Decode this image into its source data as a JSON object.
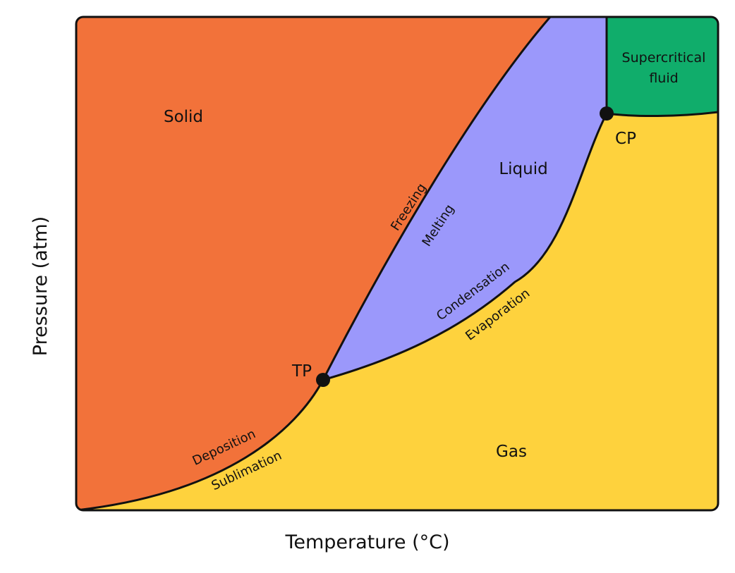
{
  "axes": {
    "x_label": "Temperature (°C)",
    "y_label": "Pressure (atm)"
  },
  "regions": {
    "solid": "Solid",
    "liquid": "Liquid",
    "gas": "Gas",
    "supercritical_line1": "Supercritical",
    "supercritical_line2": "fluid"
  },
  "points": {
    "triple": "TP",
    "critical": "CP"
  },
  "transitions": {
    "freezing": "Freezing",
    "melting": "Melting",
    "condensation": "Condensation",
    "evaporation": "Evaporation",
    "deposition": "Deposition",
    "sublimation": "Sublimation"
  },
  "colors": {
    "solid": "#f2723a",
    "liquid": "#9b98fb",
    "gas": "#fed23d",
    "supercritical": "#10ad6b",
    "line": "#111111"
  }
}
